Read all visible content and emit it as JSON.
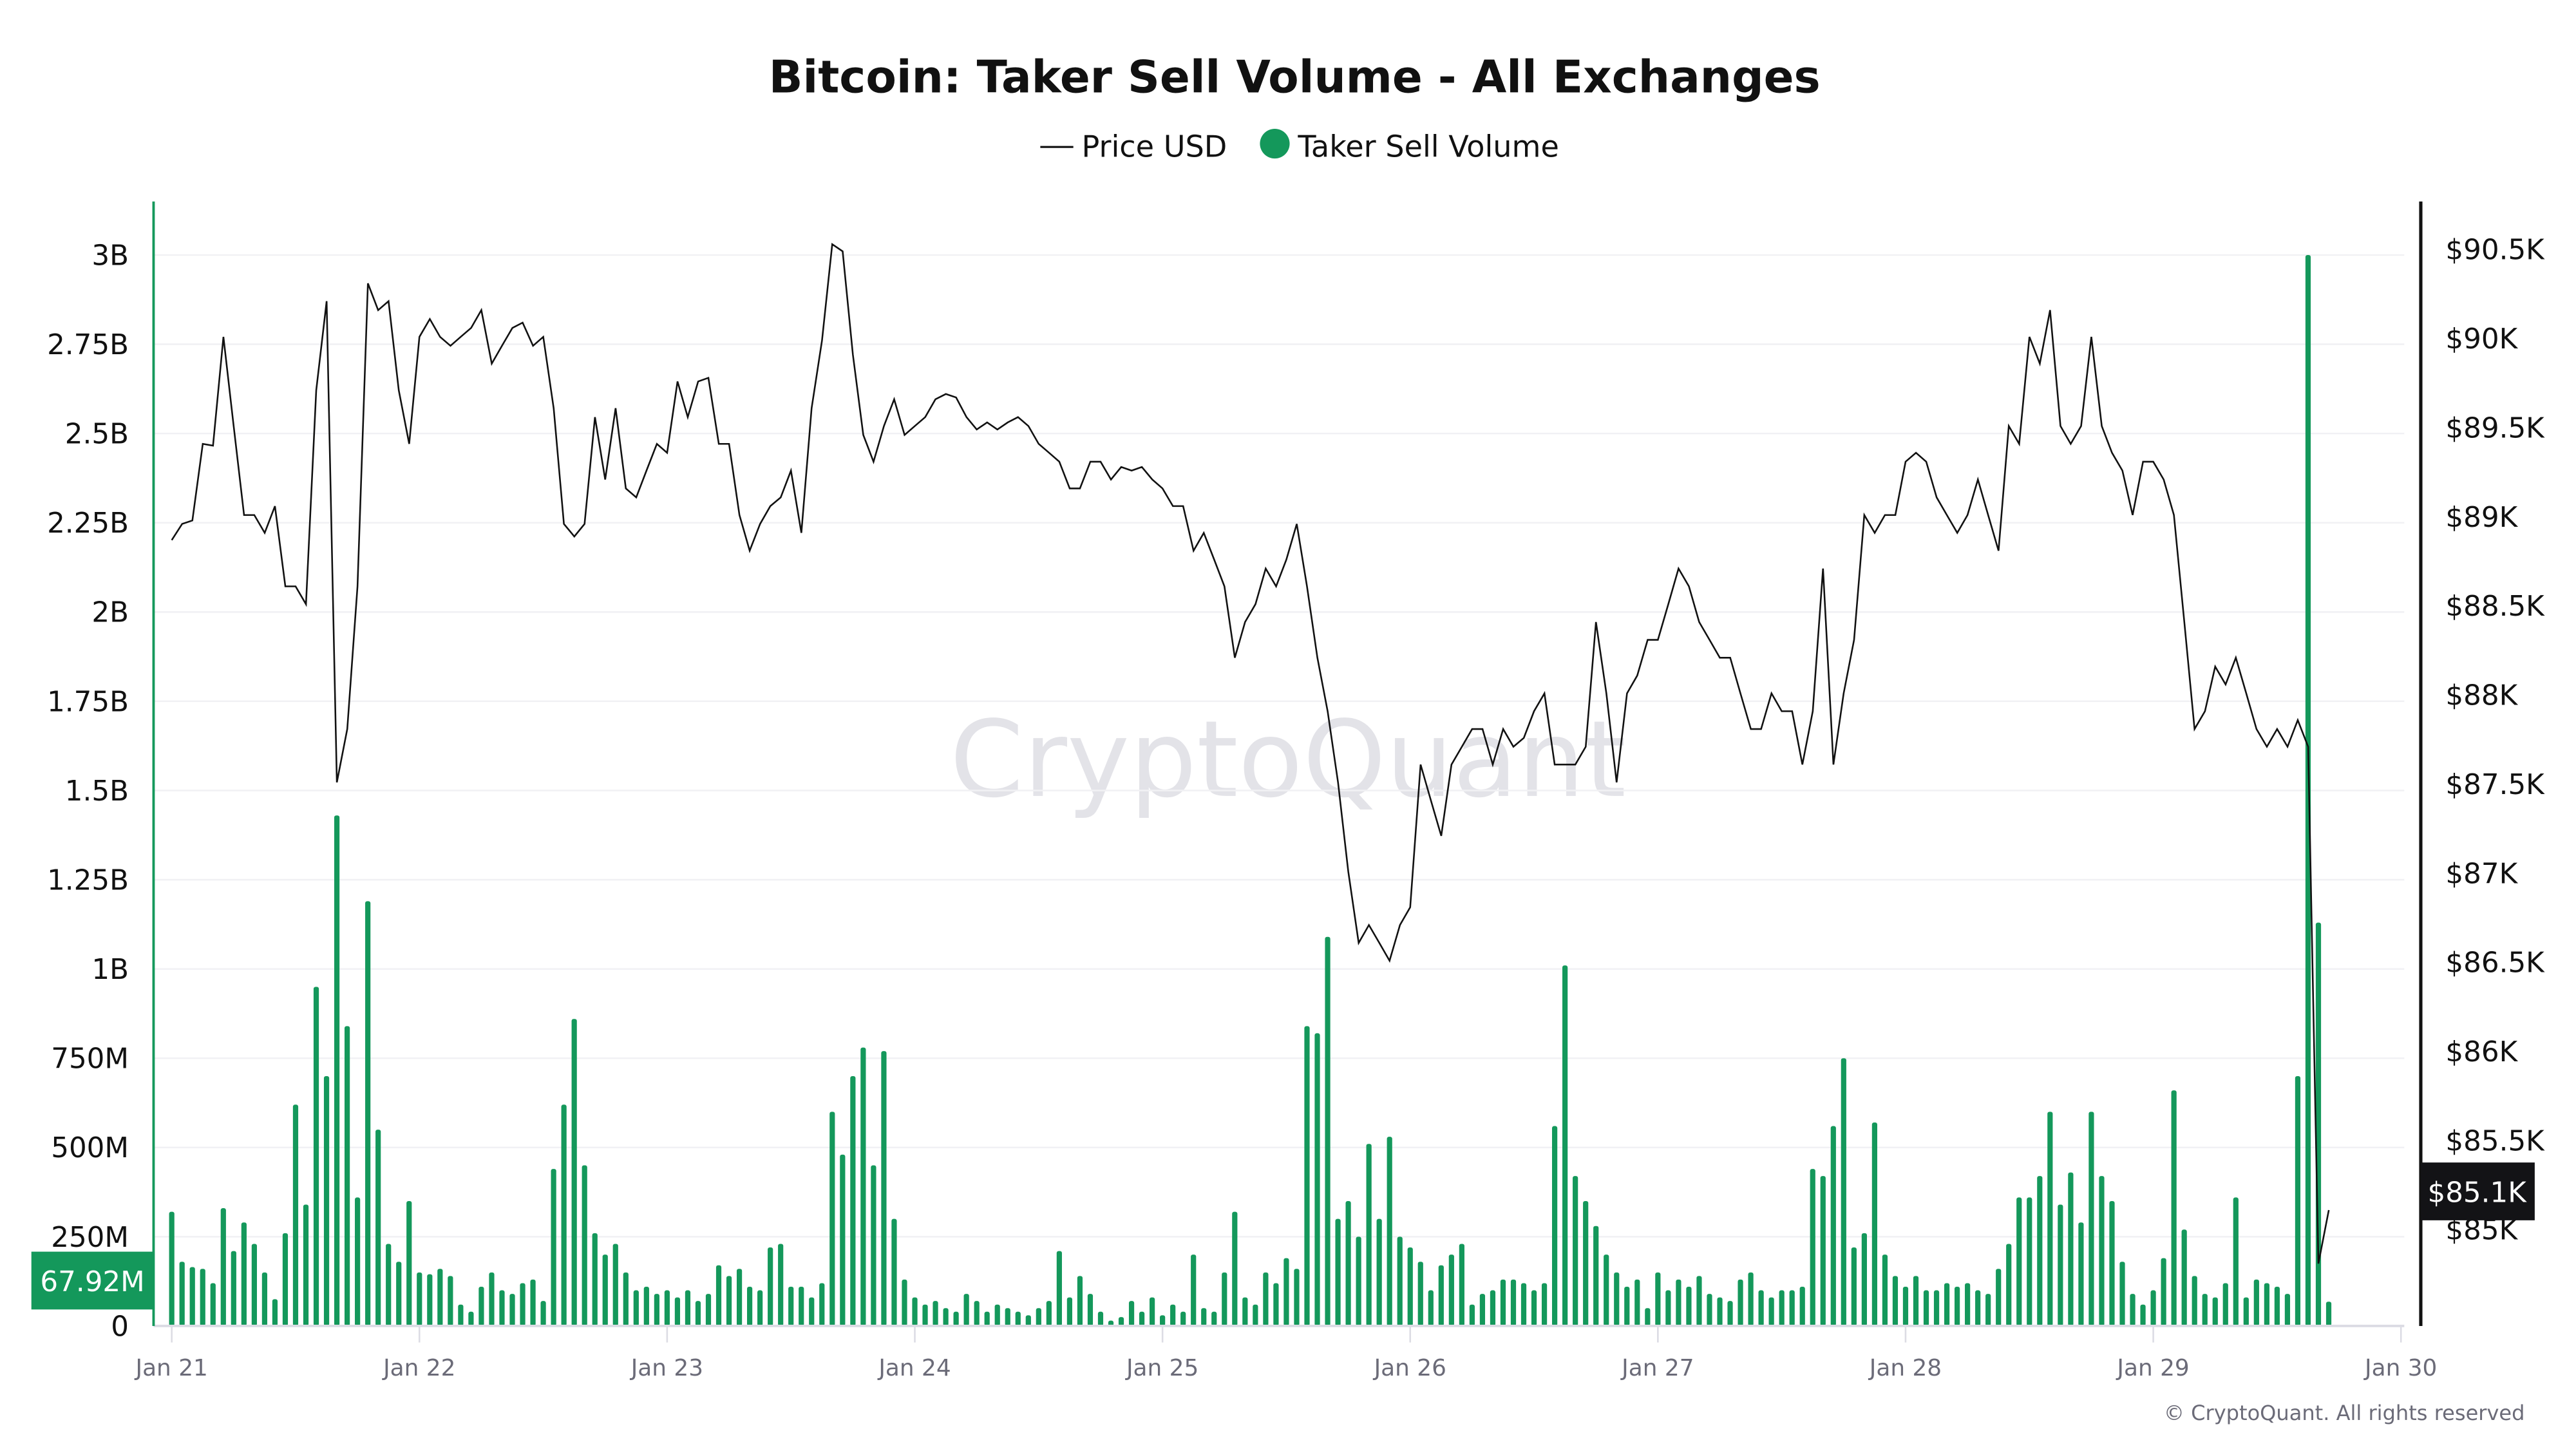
{
  "chart_data": {
    "type": "bar+line",
    "title": "Bitcoin: Taker Sell Volume - All Exchanges",
    "legend": {
      "placement": "top-center",
      "entries": [
        {
          "label": "Price USD",
          "marker": "line",
          "color": "#111111"
        },
        {
          "label": "Taker Sell Volume",
          "marker": "dot",
          "color": "#14985b"
        }
      ]
    },
    "watermark": "CryptoQuant",
    "copyright": "© CryptoQuant. All rights reserved",
    "x_axis": {
      "interval": "hourly",
      "start": "Jan 21 00:00",
      "tick_labels": [
        "Jan 21",
        "Jan 22",
        "Jan 23",
        "Jan 24",
        "Jan 25",
        "Jan 26",
        "Jan 27",
        "Jan 28",
        "Jan 29",
        "Jan 30"
      ]
    },
    "left_axis": {
      "ylim": [
        0,
        3150000000
      ],
      "ticks": [
        0,
        250000000,
        500000000,
        750000000,
        1000000000,
        1250000000,
        1500000000,
        1750000000,
        2000000000,
        2250000000,
        2500000000,
        2750000000,
        3000000000
      ],
      "tick_labels": [
        "0",
        "250M",
        "500M",
        "750M",
        "1B",
        "1.25B",
        "1.5B",
        "1.75B",
        "2B",
        "2.25B",
        "2.5B",
        "2.75B",
        "3B"
      ],
      "current_value_label": "67.92M",
      "color": "#14985b"
    },
    "right_axis": {
      "ylim": [
        84450,
        90760
      ],
      "ticks": [
        85000,
        85500,
        86000,
        86500,
        87000,
        87500,
        88000,
        88500,
        89000,
        89500,
        90000,
        90500
      ],
      "tick_labels": [
        "$85K",
        "$85.5K",
        "$86K",
        "$86.5K",
        "$87K",
        "$87.5K",
        "$88K",
        "$88.5K",
        "$89K",
        "$89.5K",
        "$90K",
        "$90.5K"
      ],
      "current_value_label": "$85.1K",
      "color": "#111111"
    },
    "grid": true,
    "series": [
      {
        "name": "Taker Sell Volume",
        "type": "bar",
        "axis": "left",
        "unit": "M USD",
        "values": [
          320,
          180,
          165,
          160,
          120,
          330,
          210,
          290,
          230,
          150,
          75,
          260,
          620,
          340,
          950,
          700,
          1430,
          840,
          360,
          1190,
          550,
          230,
          180,
          350,
          150,
          145,
          160,
          140,
          60,
          40,
          110,
          150,
          100,
          90,
          120,
          130,
          70,
          440,
          620,
          860,
          450,
          260,
          200,
          230,
          150,
          100,
          110,
          90,
          100,
          80,
          100,
          70,
          90,
          170,
          140,
          160,
          110,
          100,
          220,
          230,
          110,
          110,
          80,
          120,
          600,
          480,
          700,
          780,
          450,
          770,
          300,
          130,
          80,
          60,
          70,
          50,
          40,
          90,
          70,
          40,
          60,
          50,
          40,
          30,
          50,
          70,
          210,
          80,
          140,
          90,
          40,
          15,
          25,
          70,
          40,
          80,
          30,
          60,
          40,
          200,
          50,
          40,
          150,
          320,
          80,
          60,
          150,
          120,
          190,
          160,
          840,
          820,
          1090,
          300,
          350,
          250,
          510,
          300,
          530,
          250,
          220,
          180,
          100,
          170,
          200,
          230,
          60,
          90,
          100,
          130,
          130,
          120,
          100,
          120,
          560,
          1010,
          420,
          350,
          280,
          200,
          150,
          110,
          130,
          50,
          150,
          100,
          130,
          110,
          140,
          90,
          80,
          70,
          130,
          150,
          100,
          80,
          100,
          100,
          110,
          440,
          420,
          560,
          750,
          220,
          260,
          570,
          200,
          140,
          110,
          140,
          100,
          100,
          120,
          110,
          120,
          100,
          90,
          160,
          230,
          360,
          360,
          420,
          600,
          340,
          430,
          290,
          600,
          420,
          350,
          180,
          90,
          60,
          100,
          190,
          660,
          270,
          140,
          90,
          80,
          120,
          360,
          80,
          130,
          120,
          110,
          90,
          700,
          3000,
          1130,
          68
        ]
      },
      {
        "name": "Price USD",
        "type": "line",
        "axis": "right",
        "unit": "K USD",
        "values": [
          88.86,
          88.95,
          88.97,
          89.4,
          89.39,
          90.0,
          89.5,
          89.0,
          89.0,
          88.9,
          89.05,
          88.6,
          88.6,
          88.5,
          89.7,
          90.2,
          87.5,
          87.8,
          88.6,
          90.3,
          90.15,
          90.2,
          89.7,
          89.4,
          90.0,
          90.1,
          90.0,
          89.95,
          90.0,
          90.05,
          90.15,
          89.85,
          89.95,
          90.05,
          90.08,
          89.95,
          90.0,
          89.6,
          88.95,
          88.88,
          88.95,
          89.55,
          89.2,
          89.6,
          89.15,
          89.1,
          89.25,
          89.4,
          89.35,
          89.75,
          89.55,
          89.75,
          89.77,
          89.4,
          89.4,
          89.0,
          88.8,
          88.95,
          89.05,
          89.1,
          89.25,
          88.9,
          89.6,
          89.98,
          90.52,
          90.48,
          89.9,
          89.45,
          89.3,
          89.5,
          89.65,
          89.45,
          89.5,
          89.55,
          89.65,
          89.68,
          89.66,
          89.55,
          89.48,
          89.52,
          89.48,
          89.52,
          89.55,
          89.5,
          89.4,
          89.35,
          89.3,
          89.15,
          89.15,
          89.3,
          89.3,
          89.2,
          89.27,
          89.25,
          89.27,
          89.2,
          89.15,
          89.05,
          89.05,
          88.8,
          88.9,
          88.75,
          88.6,
          88.2,
          88.4,
          88.5,
          88.7,
          88.6,
          88.75,
          88.95,
          88.6,
          88.2,
          87.9,
          87.5,
          87.0,
          86.6,
          86.7,
          86.6,
          86.5,
          86.7,
          86.8,
          87.6,
          87.4,
          87.2,
          87.6,
          87.7,
          87.8,
          87.8,
          87.6,
          87.8,
          87.7,
          87.75,
          87.9,
          88.0,
          87.6,
          87.6,
          87.6,
          87.7,
          88.4,
          88.0,
          87.5,
          88.0,
          88.1,
          88.3,
          88.3,
          88.5,
          88.7,
          88.6,
          88.4,
          88.3,
          88.2,
          88.2,
          88.0,
          87.8,
          87.8,
          88.0,
          87.9,
          87.9,
          87.6,
          87.9,
          88.7,
          87.6,
          88.0,
          88.3,
          89.0,
          88.9,
          89.0,
          89.0,
          89.3,
          89.35,
          89.3,
          89.1,
          89.0,
          88.9,
          89.0,
          89.2,
          89.0,
          88.8,
          89.5,
          89.4,
          90.0,
          89.85,
          90.15,
          89.5,
          89.4,
          89.5,
          90.0,
          89.5,
          89.35,
          89.25,
          89.0,
          89.3,
          89.3,
          89.2,
          89.0,
          88.4,
          87.8,
          87.9,
          88.15,
          88.05,
          88.2,
          88.0,
          87.8,
          87.7,
          87.8,
          87.7,
          87.85,
          87.7,
          84.8,
          85.1
        ]
      }
    ]
  }
}
